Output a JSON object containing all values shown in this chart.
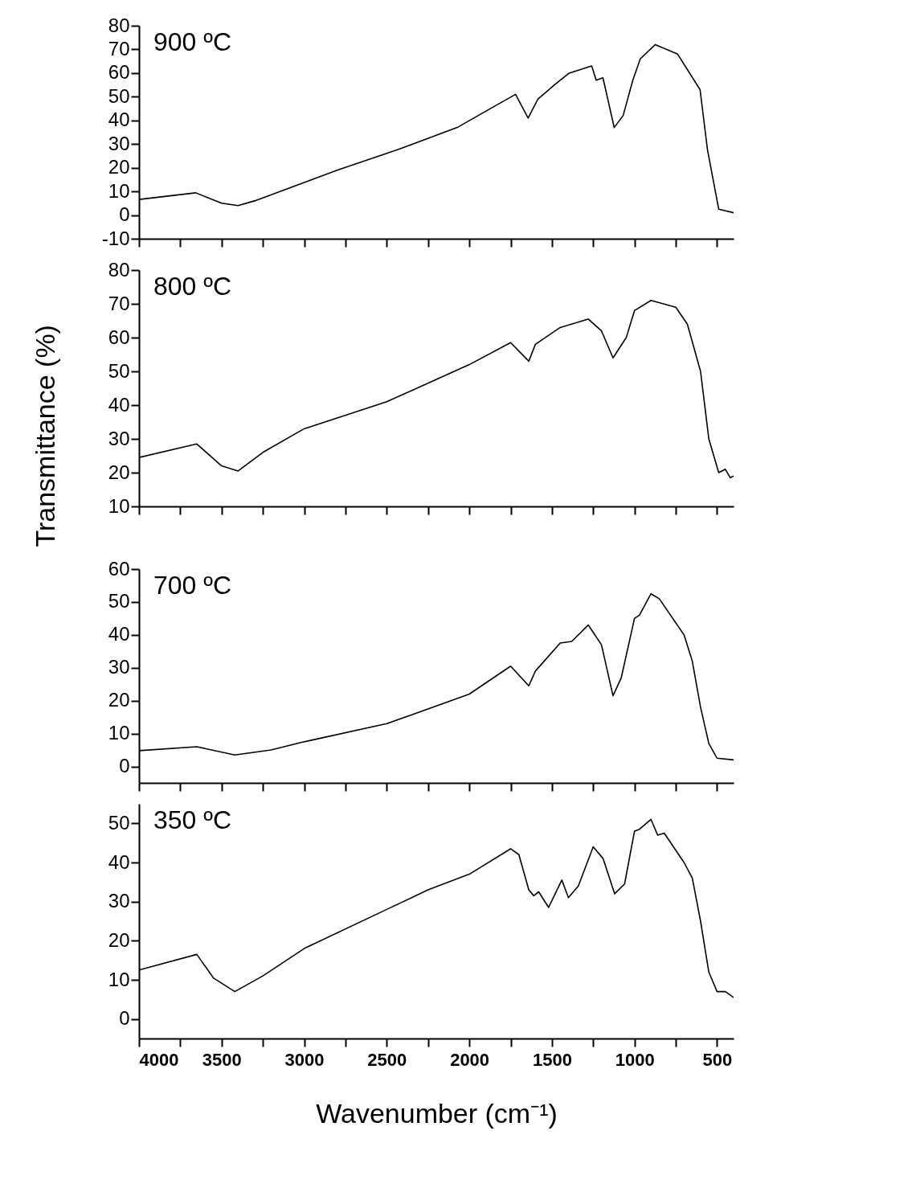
{
  "chart_data": [
    {
      "type": "line",
      "annotations": [
        "900 ºC"
      ],
      "xlim": [
        4000,
        400
      ],
      "ylim": [
        -10,
        80
      ],
      "yticks": [
        -10,
        0,
        10,
        20,
        30,
        40,
        50,
        60,
        70,
        80
      ],
      "xticks": [
        4000,
        {
          "value": 3750,
          "label": null
        },
        3500,
        {
          "value": 3250,
          "label": null
        },
        3000,
        {
          "value": 2750,
          "label": null
        },
        2500,
        {
          "value": 2250,
          "label": null
        },
        2000,
        {
          "value": 1750,
          "label": null
        },
        1500,
        {
          "value": 1250,
          "label": null
        },
        1000,
        {
          "value": 750,
          "label": null
        },
        500
      ],
      "tick_labels": "y",
      "series": [
        {
          "color": "#000000",
          "x": [
            4000,
            3656,
            3500,
            3400,
            3300,
            3068,
            2797,
            2435,
            2073,
            1847,
            1720,
            1644,
            1585,
            1485,
            1395,
            1259,
            1232,
            1191,
            1123,
            1069,
            1010,
            965,
            875,
            739,
            603,
            558,
            490,
            400
          ],
          "values": [
            6.6,
            9.4,
            5,
            4,
            6,
            12,
            19,
            27.6,
            37,
            46,
            51,
            41,
            49,
            55,
            60,
            63,
            57,
            58,
            37,
            42,
            57,
            66,
            72,
            68,
            53,
            27.6,
            2.5,
            1
          ]
        }
      ]
    },
    {
      "type": "line",
      "ylabel": "Transmittance (%)",
      "annotations": [
        "800 ºC"
      ],
      "xlim": [
        4000,
        400
      ],
      "ylim": [
        10,
        80
      ],
      "yticks": [
        10,
        20,
        30,
        40,
        50,
        60,
        70,
        80
      ],
      "xticks": [
        4000,
        {
          "value": 3750,
          "label": null
        },
        3500,
        {
          "value": 3250,
          "label": null
        },
        3000,
        {
          "value": 2750,
          "label": null
        },
        2500,
        {
          "value": 2250,
          "label": null
        },
        2000,
        {
          "value": 1750,
          "label": null
        },
        1500,
        {
          "value": 1250,
          "label": null
        },
        1000,
        {
          "value": 750,
          "label": null
        },
        500
      ],
      "tick_labels": "y",
      "series": [
        {
          "color": "#000000",
          "x": [
            4000,
            3650,
            3500,
            3400,
            3250,
            3000,
            2500,
            2000,
            1750,
            1640,
            1600,
            1450,
            1280,
            1200,
            1130,
            1050,
            1000,
            900,
            750,
            680,
            600,
            550,
            490,
            450,
            420,
            400
          ],
          "values": [
            24.5,
            28.5,
            22,
            20.5,
            26,
            33,
            41,
            52,
            58.5,
            53,
            58,
            63,
            65.5,
            62,
            54,
            60,
            68,
            71,
            69,
            64,
            50,
            30,
            20,
            21,
            18.5,
            19
          ]
        }
      ]
    },
    {
      "type": "line",
      "annotations": [
        "700 ºC"
      ],
      "xlim": [
        4000,
        400
      ],
      "ylim": [
        -5,
        60
      ],
      "yticks": [
        0,
        10,
        20,
        30,
        40,
        50,
        60
      ],
      "xticks": [
        4000,
        {
          "value": 3750,
          "label": null
        },
        3500,
        {
          "value": 3250,
          "label": null
        },
        3000,
        {
          "value": 2750,
          "label": null
        },
        2500,
        {
          "value": 2250,
          "label": null
        },
        2000,
        {
          "value": 1750,
          "label": null
        },
        1500,
        {
          "value": 1250,
          "label": null
        },
        1000,
        {
          "value": 750,
          "label": null
        },
        500
      ],
      "tick_labels": "y",
      "series": [
        {
          "color": "#000000",
          "x": [
            4000,
            3650,
            3420,
            3200,
            3000,
            2500,
            2000,
            1750,
            1640,
            1600,
            1450,
            1380,
            1280,
            1200,
            1130,
            1080,
            1000,
            970,
            900,
            850,
            700,
            650,
            600,
            550,
            500,
            400
          ],
          "values": [
            4.8,
            6,
            3.5,
            5,
            7.5,
            13,
            22,
            30.5,
            24.5,
            29,
            37.5,
            38,
            43,
            37,
            21.5,
            27,
            45,
            46,
            52.5,
            51,
            40,
            32,
            18,
            7,
            2.5,
            2
          ]
        }
      ]
    },
    {
      "type": "line",
      "annotations": [
        "350 ºC"
      ],
      "xlabel": "Wavenumber (cm⁻¹)",
      "xlim": [
        4000,
        400
      ],
      "ylim": [
        -5,
        55
      ],
      "yticks": [
        0,
        10,
        20,
        30,
        40,
        50
      ],
      "xticks": [
        4000,
        {
          "value": 3750,
          "label": null
        },
        3500,
        {
          "value": 3250,
          "label": null
        },
        3000,
        {
          "value": 2750,
          "label": null
        },
        2500,
        {
          "value": 2250,
          "label": null
        },
        2000,
        {
          "value": 1750,
          "label": null
        },
        1500,
        {
          "value": 1250,
          "label": null
        },
        1000,
        {
          "value": 750,
          "label": null
        },
        500
      ],
      "series": [
        {
          "color": "#000000",
          "x": [
            4000,
            3650,
            3550,
            3420,
            3250,
            3000,
            2500,
            2250,
            2000,
            1750,
            1700,
            1640,
            1610,
            1580,
            1520,
            1440,
            1400,
            1340,
            1250,
            1190,
            1120,
            1060,
            1000,
            970,
            900,
            860,
            820,
            700,
            650,
            600,
            550,
            500,
            450,
            400
          ],
          "values": [
            12.5,
            16.5,
            10.5,
            7,
            11,
            18,
            28,
            33,
            37,
            43.5,
            42,
            33,
            31.5,
            32.5,
            28.5,
            35.5,
            31,
            34,
            44,
            41,
            32,
            34.5,
            48,
            48.5,
            51,
            47,
            47.5,
            40,
            36,
            25,
            12,
            7,
            7,
            5.5
          ]
        }
      ]
    }
  ]
}
